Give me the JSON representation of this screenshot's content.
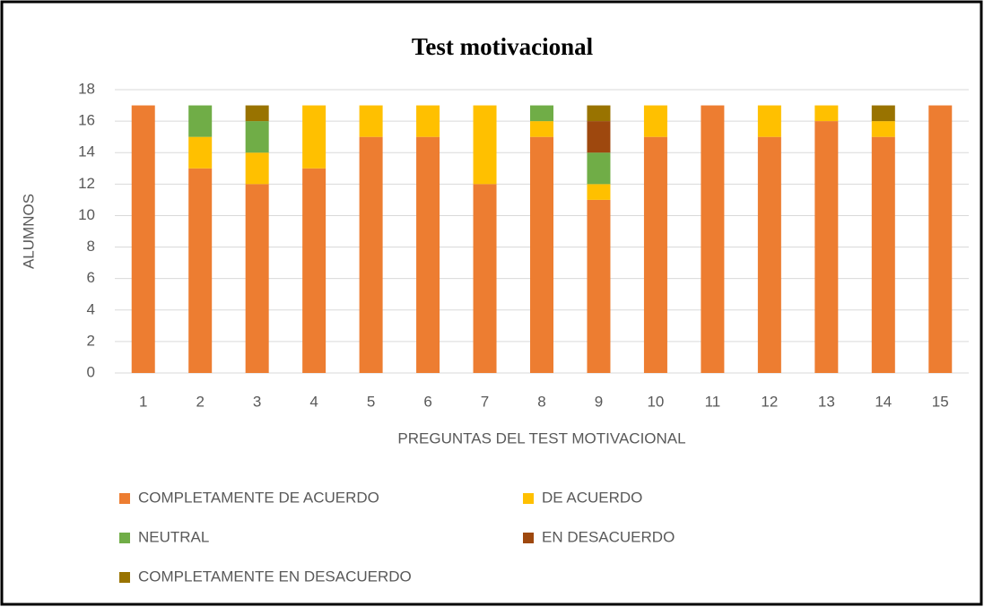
{
  "chart_data": {
    "type": "stacked_bar",
    "title": "Test motivacional",
    "x_label": "PREGUNTAS DEL TEST MOTIVACIONAL",
    "y_label": "ALUMNOS",
    "categories": [
      "1",
      "2",
      "3",
      "4",
      "5",
      "6",
      "7",
      "8",
      "9",
      "10",
      "11",
      "12",
      "13",
      "14",
      "15"
    ],
    "series": [
      {
        "name": "COMPLETAMENTE DE ACUERDO",
        "color": "#ed7d31",
        "values": [
          17,
          13,
          12,
          13,
          15,
          15,
          12,
          15,
          11,
          15,
          17,
          15,
          16,
          15,
          17
        ]
      },
      {
        "name": "DE ACUERDO",
        "color": "#ffc000",
        "values": [
          0,
          2,
          2,
          4,
          2,
          2,
          5,
          1,
          1,
          2,
          0,
          2,
          1,
          1,
          0
        ]
      },
      {
        "name": "NEUTRAL",
        "color": "#70ad47",
        "values": [
          0,
          2,
          2,
          0,
          0,
          0,
          0,
          1,
          2,
          0,
          0,
          0,
          0,
          0,
          0
        ]
      },
      {
        "name": "EN DESACUERDO",
        "color": "#9e480e",
        "values": [
          0,
          0,
          0,
          0,
          0,
          0,
          0,
          0,
          2,
          0,
          0,
          0,
          0,
          0,
          0
        ]
      },
      {
        "name": "COMPLETAMENTE EN DESACUERDO",
        "color": "#997300",
        "values": [
          0,
          0,
          1,
          0,
          0,
          0,
          0,
          0,
          1,
          0,
          0,
          0,
          0,
          1,
          0
        ]
      }
    ],
    "ylim": [
      0,
      18
    ],
    "yticks": [
      0,
      2,
      4,
      6,
      8,
      10,
      12,
      14,
      16,
      18
    ],
    "grid": true
  }
}
